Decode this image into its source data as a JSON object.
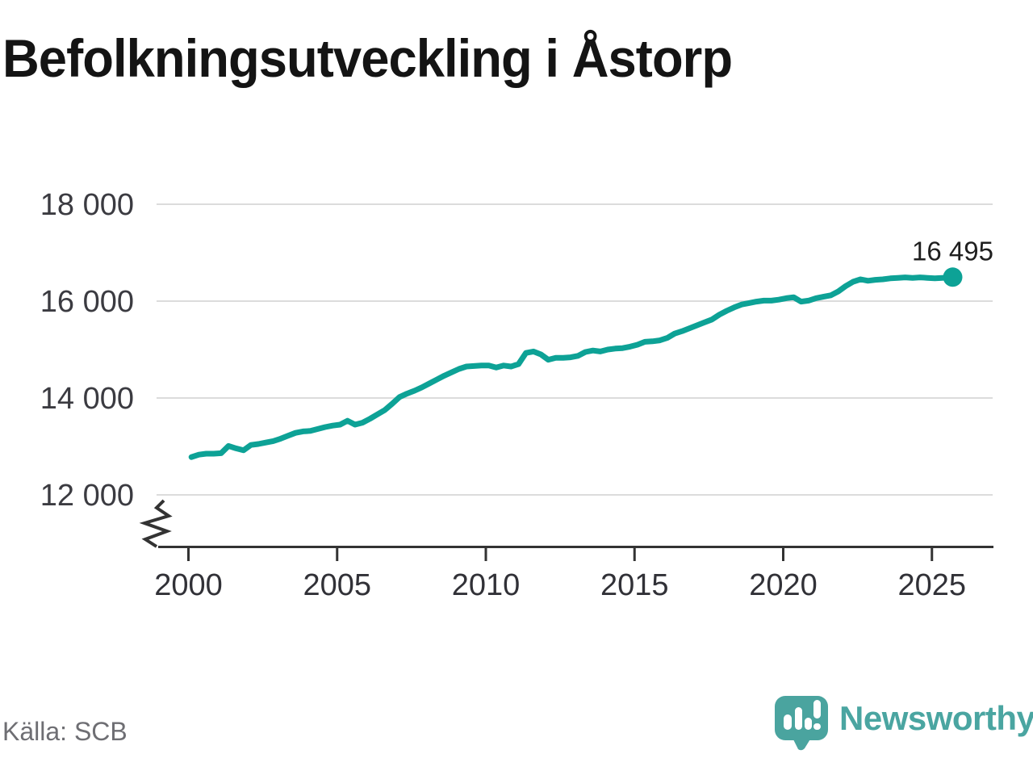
{
  "title": "Befolkningsutveckling i Åstorp",
  "source_note": "Källa: SCB",
  "branding": {
    "wordmark": "Newsworthy",
    "brand_color": "#4aa5a1",
    "badge_color": "#4aa49f"
  },
  "chart_data": {
    "type": "line",
    "title": "Befolkningsutveckling i Åstorp",
    "xlabel": "",
    "ylabel": "",
    "grid": true,
    "legend_position": "none",
    "x_axis": {
      "tick_years": [
        2000,
        2005,
        2010,
        2015,
        2020,
        2025
      ],
      "range": [
        1999,
        2027
      ],
      "axis_break_at_origin": true
    },
    "y_axis": {
      "ticks": [
        {
          "value": 12000,
          "label": "12 000"
        },
        {
          "value": 14000,
          "label": "14 000"
        },
        {
          "value": 16000,
          "label": "16 000"
        },
        {
          "value": 18000,
          "label": "18 000"
        }
      ],
      "shown_range": [
        12000,
        18000
      ]
    },
    "colors": {
      "line": "#0da296",
      "grid": "#dcdcdc",
      "axis": "#333333"
    },
    "end_point": {
      "label": "16 495",
      "value": 16495,
      "year": 2025.7
    },
    "series": [
      {
        "name": "befolkning",
        "points": [
          [
            2000.1,
            12780
          ],
          [
            2000.35,
            12830
          ],
          [
            2000.6,
            12850
          ],
          [
            2000.85,
            12850
          ],
          [
            2001.1,
            12860
          ],
          [
            2001.35,
            13010
          ],
          [
            2001.6,
            12960
          ],
          [
            2001.85,
            12920
          ],
          [
            2002.1,
            13030
          ],
          [
            2002.35,
            13050
          ],
          [
            2002.6,
            13080
          ],
          [
            2002.85,
            13110
          ],
          [
            2003.1,
            13160
          ],
          [
            2003.35,
            13220
          ],
          [
            2003.6,
            13280
          ],
          [
            2003.85,
            13310
          ],
          [
            2004.1,
            13320
          ],
          [
            2004.35,
            13360
          ],
          [
            2004.6,
            13400
          ],
          [
            2004.85,
            13430
          ],
          [
            2005.1,
            13450
          ],
          [
            2005.35,
            13530
          ],
          [
            2005.6,
            13450
          ],
          [
            2005.85,
            13490
          ],
          [
            2006.1,
            13570
          ],
          [
            2006.35,
            13660
          ],
          [
            2006.6,
            13750
          ],
          [
            2006.85,
            13880
          ],
          [
            2007.1,
            14020
          ],
          [
            2007.35,
            14090
          ],
          [
            2007.6,
            14150
          ],
          [
            2007.85,
            14220
          ],
          [
            2008.1,
            14300
          ],
          [
            2008.35,
            14380
          ],
          [
            2008.6,
            14460
          ],
          [
            2008.85,
            14530
          ],
          [
            2009.1,
            14600
          ],
          [
            2009.35,
            14650
          ],
          [
            2009.6,
            14660
          ],
          [
            2009.85,
            14670
          ],
          [
            2010.1,
            14670
          ],
          [
            2010.35,
            14630
          ],
          [
            2010.6,
            14670
          ],
          [
            2010.85,
            14650
          ],
          [
            2011.1,
            14700
          ],
          [
            2011.35,
            14930
          ],
          [
            2011.6,
            14960
          ],
          [
            2011.85,
            14900
          ],
          [
            2012.1,
            14790
          ],
          [
            2012.35,
            14830
          ],
          [
            2012.6,
            14830
          ],
          [
            2012.85,
            14840
          ],
          [
            2013.1,
            14870
          ],
          [
            2013.35,
            14950
          ],
          [
            2013.6,
            14980
          ],
          [
            2013.85,
            14960
          ],
          [
            2014.1,
            15000
          ],
          [
            2014.35,
            15020
          ],
          [
            2014.6,
            15030
          ],
          [
            2014.85,
            15060
          ],
          [
            2015.1,
            15100
          ],
          [
            2015.35,
            15160
          ],
          [
            2015.6,
            15170
          ],
          [
            2015.85,
            15190
          ],
          [
            2016.1,
            15240
          ],
          [
            2016.35,
            15330
          ],
          [
            2016.6,
            15380
          ],
          [
            2016.85,
            15440
          ],
          [
            2017.1,
            15500
          ],
          [
            2017.35,
            15560
          ],
          [
            2017.6,
            15620
          ],
          [
            2017.85,
            15720
          ],
          [
            2018.1,
            15800
          ],
          [
            2018.35,
            15870
          ],
          [
            2018.6,
            15930
          ],
          [
            2018.85,
            15960
          ],
          [
            2019.1,
            15990
          ],
          [
            2019.35,
            16010
          ],
          [
            2019.6,
            16010
          ],
          [
            2019.85,
            16030
          ],
          [
            2020.1,
            16060
          ],
          [
            2020.35,
            16080
          ],
          [
            2020.6,
            15990
          ],
          [
            2020.85,
            16010
          ],
          [
            2021.1,
            16060
          ],
          [
            2021.35,
            16090
          ],
          [
            2021.6,
            16120
          ],
          [
            2021.85,
            16200
          ],
          [
            2022.1,
            16310
          ],
          [
            2022.35,
            16400
          ],
          [
            2022.6,
            16450
          ],
          [
            2022.85,
            16420
          ],
          [
            2023.1,
            16440
          ],
          [
            2023.35,
            16450
          ],
          [
            2023.6,
            16470
          ],
          [
            2023.85,
            16480
          ],
          [
            2024.1,
            16490
          ],
          [
            2024.35,
            16480
          ],
          [
            2024.6,
            16490
          ],
          [
            2024.85,
            16480
          ],
          [
            2025.1,
            16470
          ],
          [
            2025.35,
            16480
          ],
          [
            2025.7,
            16495
          ]
        ]
      }
    ]
  }
}
